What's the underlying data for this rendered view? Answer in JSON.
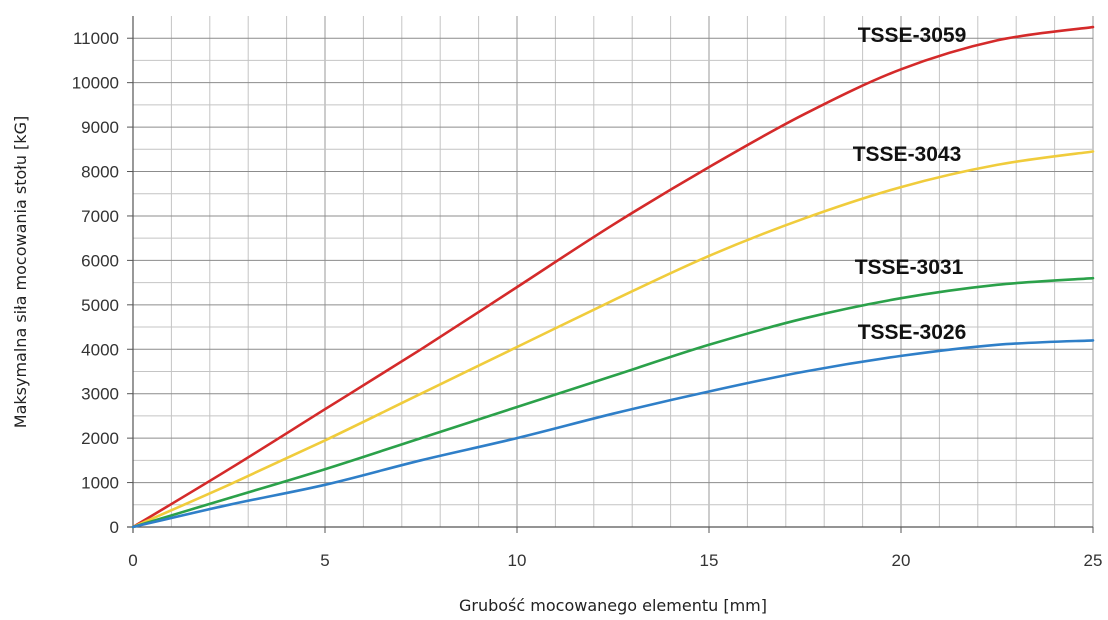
{
  "chart_data": {
    "type": "line",
    "title": "",
    "xlabel": "Grubość mocowanego elementu [mm]",
    "ylabel": "Maksymalna siła mocowania stołu [kG]",
    "xlim": [
      0,
      25
    ],
    "ylim": [
      0,
      11500
    ],
    "x_ticks": [
      0,
      5,
      10,
      15,
      20,
      25
    ],
    "y_ticks": [
      0,
      1000,
      2000,
      3000,
      4000,
      5000,
      6000,
      7000,
      8000,
      9000,
      10000,
      11000
    ],
    "x_minor_step": 1,
    "y_minor_step": 500,
    "grid": true,
    "legend": "labels placed next to line ends (top-right)",
    "series": [
      {
        "name": "TSSE-3059",
        "color": "#d42a2a",
        "x": [
          0,
          2.5,
          5,
          7.5,
          10,
          12.5,
          15,
          17.5,
          20,
          22.5,
          25
        ],
        "y": [
          0,
          1300,
          2650,
          4000,
          5400,
          6800,
          8100,
          9300,
          10300,
          10950,
          11250
        ]
      },
      {
        "name": "TSSE-3043",
        "color": "#f0cc3c",
        "x": [
          0,
          2.5,
          5,
          7.5,
          10,
          12.5,
          15,
          17.5,
          20,
          22.5,
          25
        ],
        "y": [
          0,
          950,
          1950,
          3000,
          4050,
          5100,
          6100,
          6950,
          7650,
          8150,
          8450
        ]
      },
      {
        "name": "TSSE-3031",
        "color": "#2ba14a",
        "x": [
          0,
          2.5,
          5,
          7.5,
          10,
          12.5,
          15,
          17.5,
          20,
          22.5,
          25
        ],
        "y": [
          0,
          650,
          1300,
          2000,
          2700,
          3400,
          4100,
          4700,
          5150,
          5450,
          5600
        ]
      },
      {
        "name": "TSSE-3026",
        "color": "#2f7fc8",
        "x": [
          0,
          2.5,
          5,
          7.5,
          10,
          12.5,
          15,
          17.5,
          20,
          22.5,
          25
        ],
        "y": [
          0,
          500,
          950,
          1500,
          2000,
          2550,
          3050,
          3500,
          3850,
          4100,
          4200
        ]
      }
    ]
  }
}
